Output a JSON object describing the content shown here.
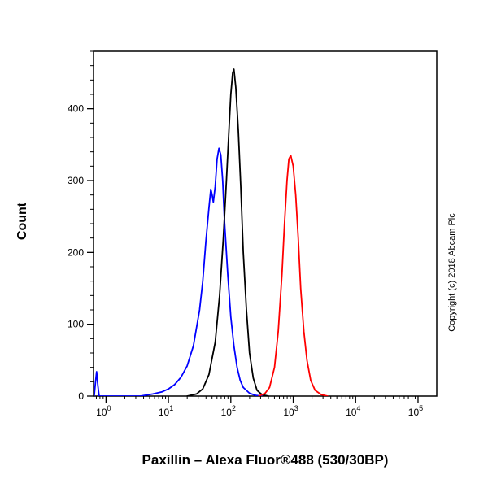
{
  "chart_data": {
    "type": "line",
    "subtype": "flow-cytometry-histogram",
    "title": "Paxillin – Alexa Fluor®488 (530/30BP)",
    "xlabel": "",
    "ylabel": "Count",
    "copyright": "Copyright (c) 2018 Abcam Plc",
    "x_scale": "log",
    "xlim_log": [
      -0.2,
      5.3
    ],
    "ylim": [
      0,
      480
    ],
    "x_major_tick_base": "10",
    "x_major_tick_exponents": [
      0,
      1,
      2,
      3,
      4,
      5
    ],
    "y_major_ticks": [
      0,
      100,
      200,
      300,
      400
    ],
    "y_minor_step": 20,
    "grid": false,
    "legend": null,
    "axis_color": "#000000",
    "series": [
      {
        "name": "blue-curve",
        "color": "#0000ff",
        "points": [
          [
            -0.19,
            0
          ],
          [
            -0.17,
            18
          ],
          [
            -0.15,
            34
          ],
          [
            -0.13,
            14
          ],
          [
            -0.11,
            0
          ],
          [
            0.55,
            0
          ],
          [
            0.75,
            3
          ],
          [
            0.9,
            6
          ],
          [
            1.0,
            10
          ],
          [
            1.1,
            16
          ],
          [
            1.2,
            26
          ],
          [
            1.3,
            42
          ],
          [
            1.4,
            70
          ],
          [
            1.5,
            120
          ],
          [
            1.55,
            160
          ],
          [
            1.6,
            215
          ],
          [
            1.65,
            262
          ],
          [
            1.68,
            288
          ],
          [
            1.7,
            280
          ],
          [
            1.72,
            270
          ],
          [
            1.75,
            292
          ],
          [
            1.78,
            330
          ],
          [
            1.81,
            345
          ],
          [
            1.84,
            336
          ],
          [
            1.87,
            300
          ],
          [
            1.9,
            242
          ],
          [
            1.95,
            170
          ],
          [
            2.0,
            110
          ],
          [
            2.05,
            70
          ],
          [
            2.1,
            40
          ],
          [
            2.15,
            22
          ],
          [
            2.2,
            12
          ],
          [
            2.3,
            4
          ],
          [
            2.4,
            1
          ],
          [
            2.5,
            0
          ]
        ]
      },
      {
        "name": "black-curve",
        "color": "#000000",
        "points": [
          [
            1.3,
            0
          ],
          [
            1.45,
            3
          ],
          [
            1.55,
            10
          ],
          [
            1.65,
            30
          ],
          [
            1.75,
            75
          ],
          [
            1.82,
            140
          ],
          [
            1.88,
            220
          ],
          [
            1.93,
            300
          ],
          [
            1.97,
            370
          ],
          [
            2.0,
            420
          ],
          [
            2.03,
            450
          ],
          [
            2.05,
            455
          ],
          [
            2.08,
            430
          ],
          [
            2.12,
            370
          ],
          [
            2.16,
            290
          ],
          [
            2.2,
            200
          ],
          [
            2.25,
            120
          ],
          [
            2.3,
            60
          ],
          [
            2.36,
            25
          ],
          [
            2.42,
            8
          ],
          [
            2.5,
            2
          ],
          [
            2.6,
            0
          ]
        ]
      },
      {
        "name": "red-curve",
        "color": "#ff0000",
        "points": [
          [
            2.45,
            0
          ],
          [
            2.55,
            4
          ],
          [
            2.62,
            12
          ],
          [
            2.7,
            40
          ],
          [
            2.76,
            90
          ],
          [
            2.82,
            170
          ],
          [
            2.86,
            240
          ],
          [
            2.9,
            300
          ],
          [
            2.93,
            330
          ],
          [
            2.96,
            335
          ],
          [
            3.0,
            320
          ],
          [
            3.04,
            280
          ],
          [
            3.08,
            220
          ],
          [
            3.12,
            150
          ],
          [
            3.17,
            90
          ],
          [
            3.22,
            50
          ],
          [
            3.28,
            22
          ],
          [
            3.35,
            8
          ],
          [
            3.45,
            2
          ],
          [
            3.55,
            0
          ]
        ]
      }
    ]
  }
}
